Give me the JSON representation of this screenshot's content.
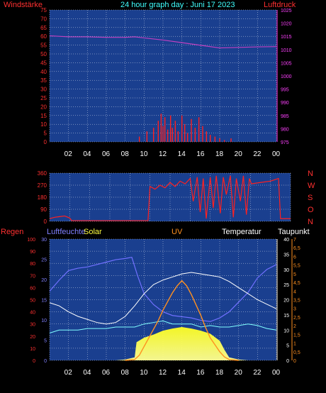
{
  "header": {
    "title": "24 hour graph day : Juni 17 2023",
    "left_label": "Windstärke",
    "right_label": "Luftdruck"
  },
  "panel3_labels": {
    "regen": "Regen",
    "luftfeuchte": "Luftfeuchte",
    "solar": "Solar",
    "uv": "UV",
    "temperatur": "Temperatur",
    "taupunkt": "Taupunkt"
  },
  "colors": {
    "background": "#000000",
    "plot_bg": "#1a3f8f",
    "grid": "#ffffff",
    "wind": "#ff2020",
    "pressure": "#c040c0",
    "humidity": "#7070ff",
    "temperature": "#ffffff",
    "dewpoint": "#80ffff",
    "solar": "#ffff00",
    "uv": "#ff9020",
    "rain_axis": "#ff3030",
    "uv_axis": "#ff9020",
    "title": "#40ffff"
  },
  "chart_data": [
    {
      "type": "line",
      "name": "panel-wind-pressure",
      "x_ticks": [
        "02",
        "04",
        "06",
        "08",
        "10",
        "12",
        "14",
        "16",
        "18",
        "20",
        "22",
        "00"
      ],
      "y_left": {
        "label": "Windstärke",
        "min": 0,
        "max": 75,
        "ticks": [
          "0",
          "5",
          "10",
          "15",
          "20",
          "25",
          "30",
          "35",
          "40",
          "45",
          "50",
          "55",
          "60",
          "65",
          "70",
          "75"
        ]
      },
      "y_right": {
        "label": "Luftdruck",
        "min": 975,
        "max": 1025,
        "ticks": [
          "975",
          "980",
          "985",
          "990",
          "995",
          "1000",
          "1005",
          "1010",
          "1015",
          "1020",
          "1025"
        ]
      },
      "series": [
        {
          "name": "Luftdruck",
          "axis": "right",
          "x": [
            0,
            2,
            4,
            6,
            8,
            9,
            10,
            12,
            14,
            16,
            18,
            20,
            22,
            24
          ],
          "values": [
            1015.2,
            1014.8,
            1014.8,
            1014.6,
            1014.6,
            1014.8,
            1014.4,
            1013.6,
            1012.6,
            1011.6,
            1010.6,
            1010.8,
            1011.0,
            1011.1
          ]
        },
        {
          "name": "Windstärke",
          "axis": "left",
          "mode": "spikes",
          "x": [
            9.5,
            10.3,
            11.0,
            11.5,
            11.8,
            12.0,
            12.2,
            12.5,
            12.8,
            13.0,
            13.3,
            13.6,
            14.0,
            14.3,
            14.6,
            15.0,
            15.4,
            15.8,
            16.2,
            16.6,
            17.0,
            17.5,
            18.0,
            18.5,
            19.2
          ],
          "values": [
            3,
            6,
            8,
            12,
            16,
            9,
            14,
            7,
            15,
            8,
            12,
            6,
            15,
            10,
            5,
            13,
            8,
            14,
            9,
            6,
            4,
            3,
            2,
            1,
            2
          ]
        }
      ]
    },
    {
      "type": "line",
      "name": "panel-wind-direction",
      "x_ticks": [
        "02",
        "04",
        "06",
        "08",
        "10",
        "12",
        "14",
        "16",
        "18",
        "20",
        "22",
        "00"
      ],
      "y_left": {
        "min": 0,
        "max": 360,
        "ticks": [
          "0",
          "90",
          "180",
          "270",
          "360"
        ]
      },
      "compass_labels": [
        "N",
        "W",
        "S",
        "O",
        "N"
      ],
      "series": [
        {
          "name": "Windrichtung",
          "x": [
            0,
            0.5,
            1,
            1.5,
            2,
            2.2,
            9.8,
            10.0,
            10.5,
            11,
            11.5,
            12,
            12.5,
            13,
            13.5,
            14,
            14.3,
            14.7,
            15,
            15.3,
            15.6,
            16,
            16.3,
            16.6,
            17,
            17.3,
            17.6,
            18,
            18.3,
            18.6,
            19,
            19.3,
            19.6,
            19.9,
            20.1,
            21,
            22,
            22.8,
            23,
            24
          ],
          "values": [
            20,
            30,
            35,
            40,
            25,
            5,
            5,
            260,
            240,
            270,
            250,
            290,
            260,
            300,
            280,
            320,
            150,
            330,
            70,
            320,
            20,
            330,
            100,
            340,
            60,
            330,
            200,
            340,
            30,
            320,
            150,
            340,
            50,
            320,
            280,
            290,
            300,
            320,
            20,
            20
          ]
        }
      ]
    },
    {
      "type": "area",
      "name": "panel-multi",
      "x_ticks": [
        "02",
        "04",
        "06",
        "08",
        "10",
        "12",
        "14",
        "16",
        "18",
        "20",
        "22",
        "00"
      ],
      "axes": {
        "regen": {
          "label": "Regen",
          "min": 0,
          "max": 100,
          "ticks": [
            "0",
            "10",
            "20",
            "30",
            "40",
            "50",
            "60",
            "70",
            "80",
            "90",
            "100"
          ]
        },
        "luftfeuchte": {
          "label": "Luftfeuchte",
          "min": 0,
          "max": 30,
          "ticks": [
            "0",
            "5",
            "10",
            "15",
            "20",
            "25",
            "30"
          ]
        },
        "temperatur": {
          "label": "Temperatur",
          "min": 0,
          "max": 40,
          "ticks": [
            "0",
            "5",
            "10",
            "15",
            "20",
            "25",
            "30",
            "35",
            "40"
          ]
        },
        "uv": {
          "label": "UV",
          "min": 0,
          "max": 7,
          "ticks": [
            "0",
            "0,5",
            "1",
            "1,5",
            "2",
            "2,5",
            "3",
            "3,5",
            "4",
            "4,5",
            "5",
            "5,5",
            "6",
            "6,5",
            "7"
          ]
        }
      },
      "series": [
        {
          "name": "Luftfeuchte",
          "axis": "regen",
          "x": [
            0,
            1,
            2,
            3,
            4,
            5,
            6,
            7,
            8,
            8.7,
            9.3,
            10,
            11,
            12,
            13,
            14,
            15,
            16,
            17,
            18,
            19,
            20,
            21,
            22,
            23,
            24
          ],
          "values": [
            57,
            66,
            74,
            76,
            77,
            79,
            81,
            83,
            84,
            85,
            70,
            55,
            46,
            40,
            37,
            36,
            35,
            33,
            32,
            35,
            40,
            48,
            56,
            68,
            75,
            79
          ]
        },
        {
          "name": "Temperatur",
          "axis": "temperatur",
          "x": [
            0,
            1,
            2,
            3,
            4,
            5,
            6,
            7,
            8,
            9,
            10,
            11,
            12,
            13,
            14,
            15,
            16,
            17,
            18,
            19,
            20,
            21,
            22,
            23,
            24
          ],
          "values": [
            19,
            18,
            16,
            14.5,
            13.5,
            12.5,
            12,
            12.5,
            14.5,
            18,
            22,
            25,
            26.5,
            27.5,
            28.5,
            29,
            28.5,
            28,
            27.5,
            26,
            24,
            22,
            20,
            18.5,
            17
          ]
        },
        {
          "name": "Taupunkt",
          "axis": "temperatur",
          "x": [
            0,
            1,
            2,
            3,
            4,
            5,
            6,
            7,
            8,
            9,
            10,
            11,
            12,
            13,
            14,
            15,
            16,
            17,
            18,
            19,
            20,
            21,
            22,
            23,
            24
          ],
          "values": [
            9,
            10,
            10,
            10,
            10.5,
            10.5,
            10.5,
            11,
            11,
            11,
            12,
            12.5,
            13,
            12,
            12,
            12,
            11,
            11.5,
            11,
            11,
            11.5,
            12,
            11.5,
            10.5,
            10
          ]
        },
        {
          "name": "Solar",
          "axis": "temperatur",
          "mode": "fill",
          "x": [
            5,
            6,
            7,
            8,
            9,
            9.2,
            10,
            11,
            12,
            13,
            14,
            15,
            16,
            17,
            18,
            18.5,
            19,
            20,
            21,
            22
          ],
          "values": [
            0,
            0,
            0,
            0.3,
            1,
            6,
            7.5,
            8.5,
            9.8,
            10.5,
            11,
            10.5,
            9.8,
            8.8,
            6.5,
            3.5,
            1,
            0.3,
            0,
            0
          ]
        },
        {
          "name": "UV",
          "axis": "uv",
          "x": [
            8,
            9,
            9.5,
            10,
            10.5,
            11,
            11.5,
            12,
            12.5,
            13,
            13.5,
            14,
            14.5,
            15,
            15.5,
            16,
            16.5,
            17,
            17.5,
            18,
            18.5,
            19,
            20
          ],
          "values": [
            0,
            0.05,
            0.3,
            0.8,
            1.3,
            1.8,
            2.3,
            2.9,
            3.4,
            3.9,
            4.3,
            4.6,
            4.3,
            3.8,
            3.2,
            2.6,
            1.9,
            1.3,
            0.9,
            0.5,
            0.2,
            0.05,
            0
          ]
        }
      ]
    }
  ]
}
